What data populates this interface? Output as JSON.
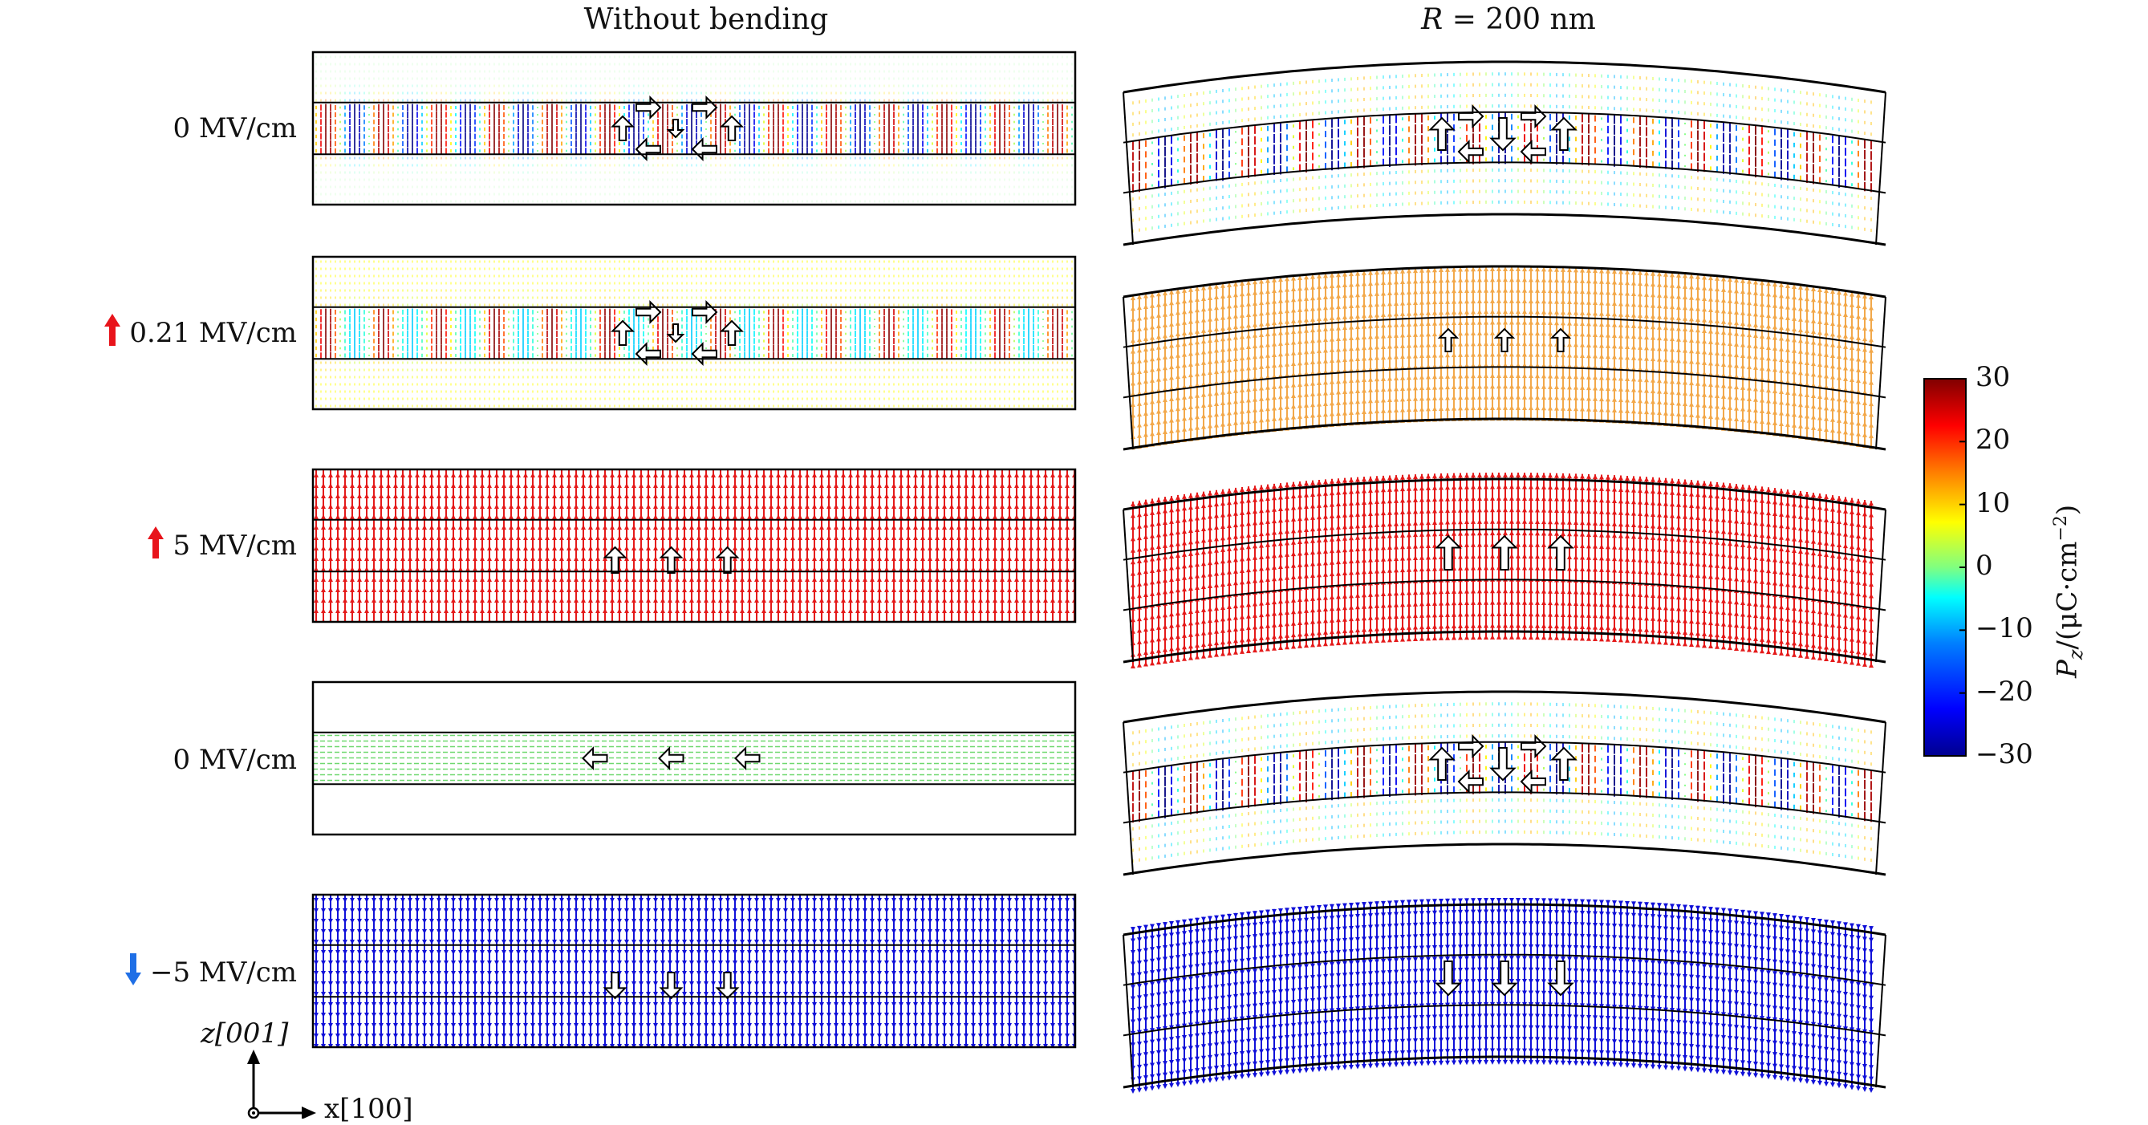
{
  "titles": {
    "left": "Without bending",
    "right_prefix": "R",
    "right_suffix": " = 200 nm"
  },
  "rows": [
    {
      "field": "0 MV/cm",
      "arrow": "none",
      "left_state": "vortex",
      "right_state": "vortex"
    },
    {
      "field": "0.21 MV/cm",
      "arrow": "up",
      "left_state": "vortex-weak",
      "right_state": "uniform-weak-up"
    },
    {
      "field": "5 MV/cm",
      "arrow": "up",
      "left_state": "uniform-up",
      "right_state": "uniform-up"
    },
    {
      "field": "0 MV/cm",
      "arrow": "none",
      "left_state": "in-plane-left",
      "right_state": "vortex"
    },
    {
      "field": "−5 MV/cm",
      "arrow": "down",
      "left_state": "uniform-down",
      "right_state": "uniform-down"
    }
  ],
  "axes": {
    "z_label": "z[001]",
    "x_label": "x[100]"
  },
  "colorbar": {
    "title": "P_z/(μC·cm⁻²)",
    "title_main": "P",
    "title_sub": "z",
    "title_rest": "/(μC·cm",
    "title_sup": "−2",
    "title_close": ")",
    "ticks": [
      "30",
      "20",
      "10",
      "0",
      "−10",
      "−20",
      "−30"
    ],
    "min": -30,
    "max": 30,
    "colors": [
      "#00008f",
      "#0000ff",
      "#0080ff",
      "#00ffff",
      "#80ff80",
      "#ffff00",
      "#ff8000",
      "#ff0000",
      "#800000"
    ]
  },
  "arrow_colors": {
    "up": "#e8141b",
    "down": "#1f6fe6"
  }
}
